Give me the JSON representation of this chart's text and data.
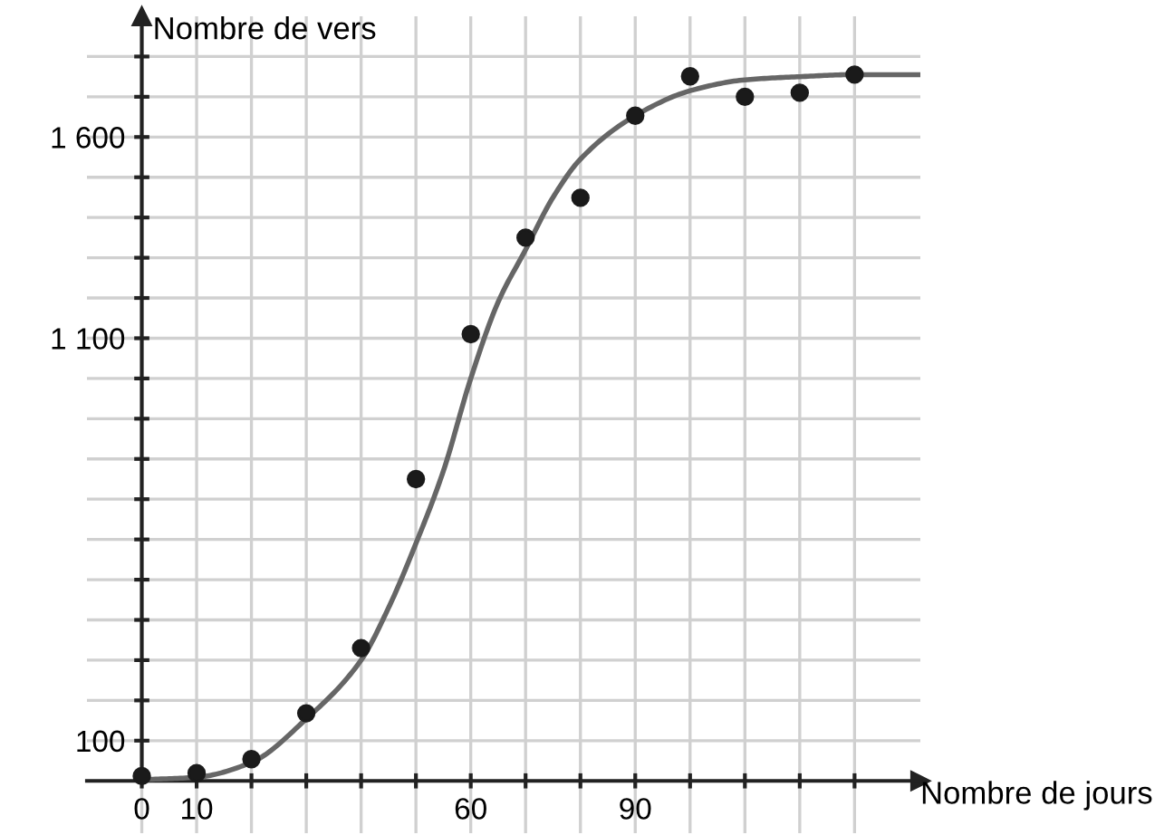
{
  "chart_data": {
    "type": "scatter",
    "xlabel": "Nombre de jours",
    "ylabel": "Nombre de vers",
    "xlim": [
      -10,
      142
    ],
    "ylim": [
      -130,
      1900
    ],
    "xticks": [
      {
        "value": 0,
        "label": "0"
      },
      10,
      {
        "value": 20,
        "label": null
      },
      {
        "value": 30,
        "label": null
      },
      {
        "value": 40,
        "label": null
      },
      {
        "value": 50,
        "label": null
      },
      60,
      {
        "value": 70,
        "label": null
      },
      {
        "value": 80,
        "label": null
      },
      90,
      {
        "value": 100,
        "label": null
      },
      {
        "value": 110,
        "label": null
      },
      {
        "value": 120,
        "label": null
      },
      {
        "value": 130,
        "label": null
      }
    ],
    "yticks": [
      100,
      {
        "value": 200,
        "label": null
      },
      {
        "value": 300,
        "label": null
      },
      {
        "value": 400,
        "label": null
      },
      {
        "value": 500,
        "label": null
      },
      {
        "value": 600,
        "label": null
      },
      {
        "value": 700,
        "label": null
      },
      {
        "value": 800,
        "label": null
      },
      {
        "value": 900,
        "label": null
      },
      {
        "value": 1000,
        "label": null
      },
      {
        "value": 1100,
        "label": "1 100"
      },
      {
        "value": 1200,
        "label": null
      },
      {
        "value": 1300,
        "label": null
      },
      {
        "value": 1400,
        "label": null
      },
      {
        "value": 1500,
        "label": null
      },
      {
        "value": 1600,
        "label": "1 600"
      },
      {
        "value": 1700,
        "label": null
      },
      {
        "value": 1800,
        "label": null
      }
    ],
    "grid": true,
    "series": [
      {
        "type": "line",
        "marker": "none",
        "color": "#666666",
        "x": [
          0,
          10,
          20,
          30,
          40,
          45,
          50,
          55,
          60,
          65,
          70,
          75,
          80,
          90,
          100,
          110,
          120,
          130,
          142
        ],
        "values": [
          3,
          9,
          46,
          154,
          300,
          430,
          590,
          770,
          1000,
          1190,
          1320,
          1450,
          1545,
          1653,
          1715,
          1742,
          1750,
          1755,
          1755
        ]
      },
      {
        "marker": "circle",
        "color": "#1a1a1a",
        "x": [
          0,
          10,
          20,
          30,
          40,
          50,
          60,
          70,
          80,
          90,
          100,
          110,
          120,
          130
        ],
        "values": [
          12,
          19,
          54,
          168,
          330,
          750,
          1110,
          1350,
          1449,
          1653,
          1751,
          1700,
          1710,
          1755
        ]
      }
    ]
  }
}
